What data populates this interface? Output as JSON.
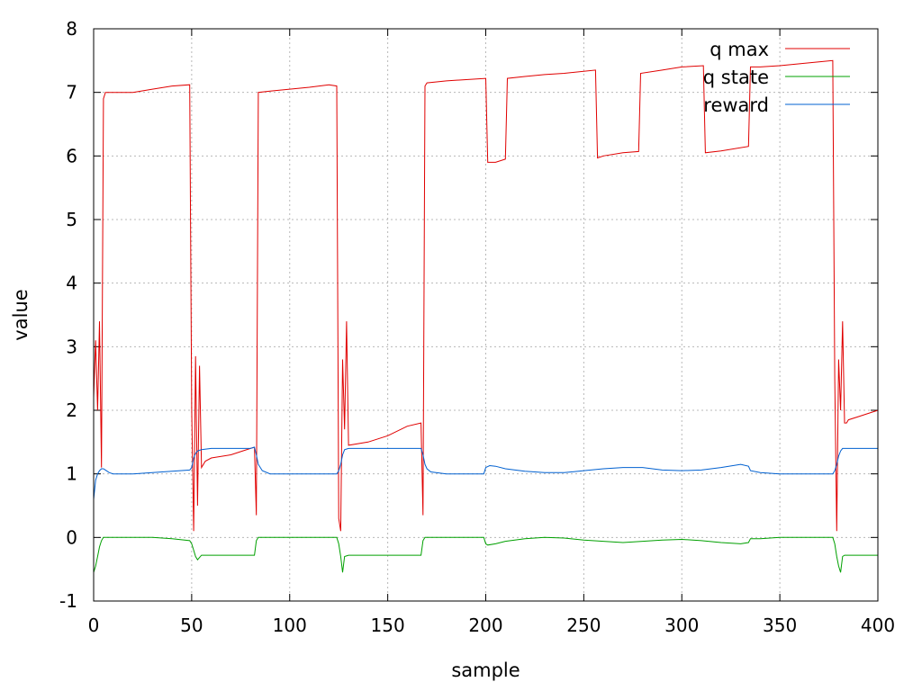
{
  "chart_data": {
    "type": "line",
    "xlabel": "sample",
    "ylabel": "value",
    "xlim": [
      0,
      400
    ],
    "ylim": [
      -1,
      8
    ],
    "xticks": [
      0,
      50,
      100,
      150,
      200,
      250,
      300,
      350,
      400
    ],
    "yticks": [
      -1,
      0,
      1,
      2,
      3,
      4,
      5,
      6,
      7,
      8
    ],
    "grid": true,
    "legend_position": "top-right",
    "series": [
      {
        "name": "q max",
        "color": "#e00000",
        "x": [
          0,
          1,
          2,
          3,
          4,
          5,
          6,
          10,
          20,
          30,
          40,
          49,
          50,
          51,
          52,
          53,
          54,
          55,
          57,
          60,
          70,
          80,
          82,
          83,
          84,
          90,
          100,
          110,
          120,
          124,
          125,
          126,
          127,
          128,
          129,
          130,
          140,
          150,
          160,
          167,
          168,
          169,
          170,
          180,
          190,
          200,
          201,
          205,
          210,
          211,
          220,
          230,
          240,
          256,
          257,
          260,
          270,
          278,
          279,
          290,
          300,
          311,
          312,
          320,
          334,
          335,
          340,
          350,
          360,
          370,
          377,
          378,
          379,
          380,
          381,
          382,
          383,
          384,
          385,
          390,
          400
        ],
        "y": [
          2.2,
          3.1,
          2.0,
          3.4,
          1.1,
          6.9,
          7.0,
          7.0,
          7.0,
          7.05,
          7.1,
          7.12,
          2.0,
          0.1,
          2.85,
          0.5,
          2.7,
          1.1,
          1.2,
          1.25,
          1.3,
          1.4,
          1.42,
          0.35,
          7.0,
          7.02,
          7.05,
          7.08,
          7.12,
          7.1,
          0.3,
          0.1,
          2.8,
          1.7,
          3.4,
          1.45,
          1.5,
          1.6,
          1.75,
          1.8,
          0.35,
          7.1,
          7.15,
          7.18,
          7.2,
          7.22,
          5.9,
          5.9,
          5.95,
          7.22,
          7.25,
          7.28,
          7.3,
          7.35,
          5.97,
          6.0,
          6.05,
          6.07,
          7.3,
          7.35,
          7.4,
          7.42,
          6.05,
          6.08,
          6.15,
          7.4,
          7.4,
          7.42,
          7.45,
          7.48,
          7.5,
          2.5,
          0.1,
          2.8,
          2.0,
          3.4,
          1.8,
          1.8,
          1.85,
          1.9,
          2.0
        ]
      },
      {
        "name": "q state",
        "color": "#00a000",
        "x": [
          0,
          1,
          2,
          3,
          4,
          5,
          6,
          8,
          10,
          20,
          30,
          40,
          49,
          50,
          51,
          52,
          53,
          55,
          60,
          70,
          82,
          83,
          84,
          90,
          100,
          110,
          120,
          124,
          125,
          126,
          127,
          128,
          130,
          140,
          150,
          160,
          167,
          168,
          169,
          170,
          180,
          190,
          199,
          200,
          201,
          205,
          210,
          220,
          230,
          240,
          250,
          260,
          270,
          280,
          290,
          300,
          310,
          320,
          330,
          334,
          335,
          340,
          350,
          360,
          370,
          377,
          378,
          379,
          380,
          381,
          382,
          383,
          384,
          390,
          400
        ],
        "y": [
          -0.55,
          -0.45,
          -0.3,
          -0.15,
          -0.05,
          0.0,
          0.0,
          0.0,
          0.0,
          0.0,
          0.0,
          -0.02,
          -0.05,
          -0.1,
          -0.2,
          -0.3,
          -0.35,
          -0.28,
          -0.28,
          -0.28,
          -0.28,
          -0.05,
          0.0,
          0.0,
          0.0,
          0.0,
          0.0,
          0.0,
          -0.1,
          -0.3,
          -0.55,
          -0.3,
          -0.28,
          -0.28,
          -0.28,
          -0.28,
          -0.28,
          -0.05,
          0.0,
          0.0,
          0.0,
          0.0,
          0.0,
          -0.1,
          -0.12,
          -0.1,
          -0.06,
          -0.02,
          0.0,
          -0.01,
          -0.04,
          -0.06,
          -0.08,
          -0.06,
          -0.04,
          -0.03,
          -0.05,
          -0.08,
          -0.1,
          -0.08,
          -0.02,
          -0.02,
          0.0,
          0.0,
          0.0,
          0.0,
          -0.1,
          -0.3,
          -0.45,
          -0.55,
          -0.3,
          -0.28,
          -0.28,
          -0.28,
          -0.28
        ]
      },
      {
        "name": "reward",
        "color": "#0060d0",
        "x": [
          0,
          1,
          2,
          3,
          4,
          5,
          6,
          8,
          10,
          20,
          30,
          40,
          49,
          50,
          51,
          52,
          53,
          55,
          60,
          70,
          80,
          82,
          83,
          84,
          86,
          90,
          100,
          110,
          120,
          124,
          125,
          126,
          127,
          128,
          130,
          140,
          150,
          160,
          167,
          168,
          169,
          170,
          172,
          180,
          190,
          199,
          200,
          202,
          205,
          210,
          220,
          230,
          240,
          250,
          260,
          270,
          280,
          290,
          300,
          310,
          320,
          330,
          334,
          335,
          340,
          350,
          360,
          370,
          377,
          378,
          379,
          380,
          381,
          382,
          383,
          390,
          400
        ],
        "y": [
          0.6,
          0.9,
          1.0,
          1.05,
          1.08,
          1.08,
          1.06,
          1.02,
          1.0,
          1.0,
          1.02,
          1.04,
          1.06,
          1.1,
          1.25,
          1.32,
          1.36,
          1.38,
          1.4,
          1.4,
          1.4,
          1.42,
          1.3,
          1.15,
          1.05,
          1.0,
          1.0,
          1.0,
          1.0,
          1.0,
          1.05,
          1.15,
          1.3,
          1.38,
          1.4,
          1.4,
          1.4,
          1.4,
          1.4,
          1.3,
          1.15,
          1.08,
          1.03,
          1.0,
          1.0,
          1.0,
          1.1,
          1.13,
          1.12,
          1.08,
          1.04,
          1.02,
          1.02,
          1.05,
          1.08,
          1.1,
          1.1,
          1.06,
          1.05,
          1.06,
          1.1,
          1.15,
          1.12,
          1.05,
          1.02,
          1.0,
          1.0,
          1.0,
          1.0,
          1.05,
          1.15,
          1.28,
          1.36,
          1.4,
          1.4,
          1.4,
          1.4
        ]
      }
    ]
  }
}
